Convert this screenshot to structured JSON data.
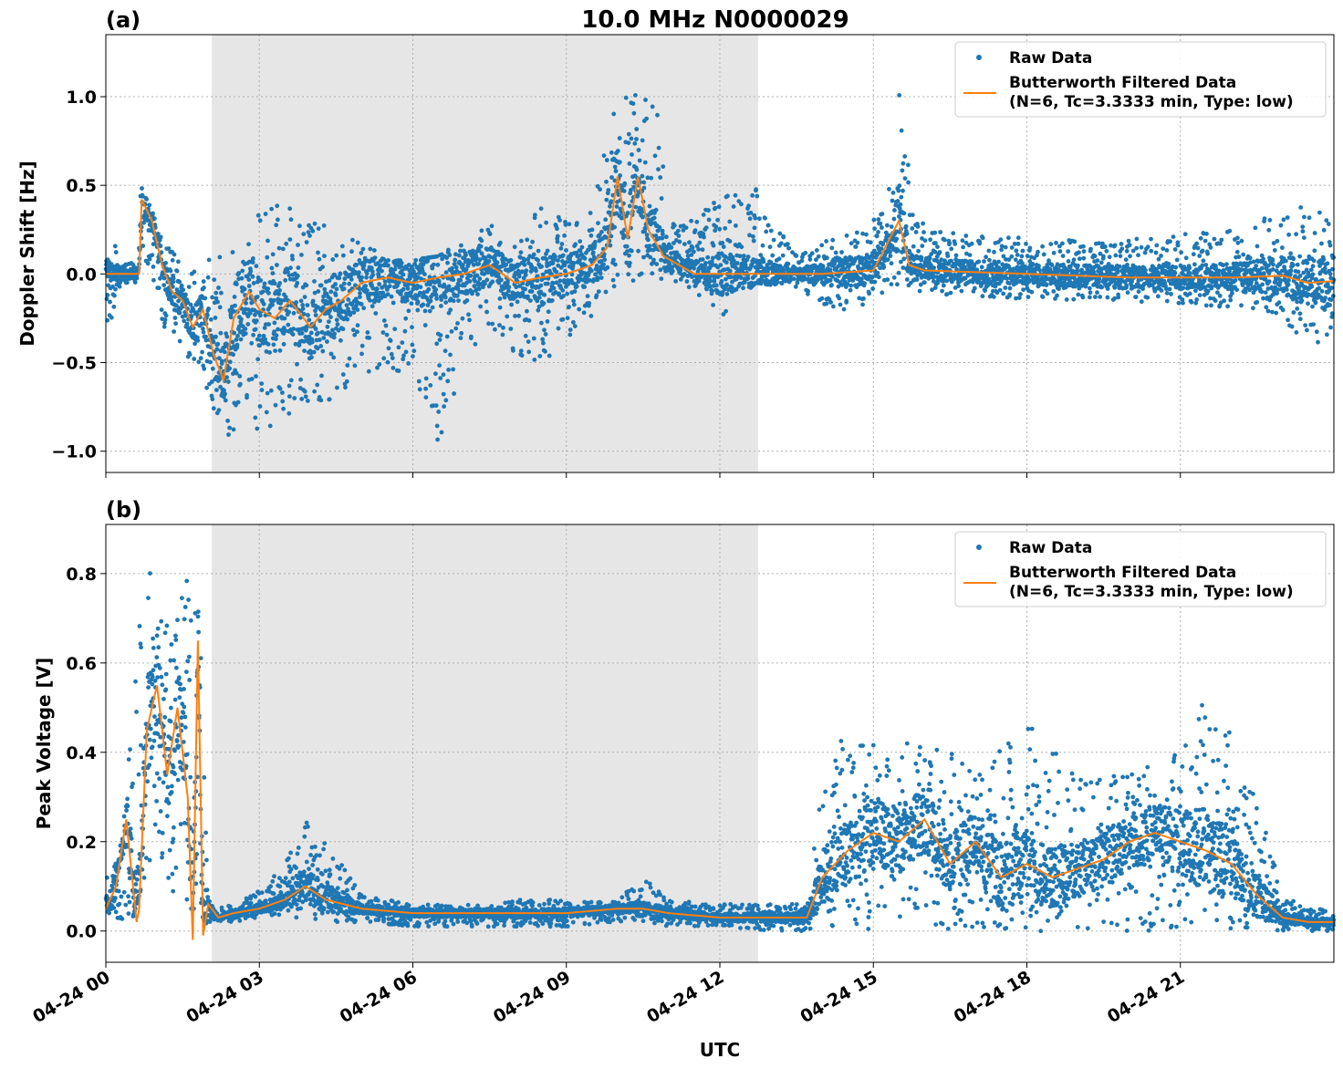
{
  "figure": {
    "title": "10.0 MHz N0000029",
    "xlabel": "UTC"
  },
  "x_tick_labels": [
    "04-24 00",
    "04-24 03",
    "04-24 06",
    "04-24 09",
    "04-24 12",
    "04-24 15",
    "04-24 18",
    "04-24 21"
  ],
  "shaded_interval_hours": [
    2.07,
    12.75
  ],
  "legend": {
    "raw": "Raw Data",
    "filtered_line1": "Butterworth Filtered Data",
    "filtered_line2": "(N=6, Tc=3.3333 min, Type: low)"
  },
  "colors": {
    "raw": "#1f77b4",
    "filtered": "#ff7f0e",
    "shade": "#e6e6e6"
  },
  "chart_data": [
    {
      "type": "scatter",
      "panel_label": "(a)",
      "ylabel": "Doppler Shift [Hz]",
      "xlim_hours": [
        0,
        24
      ],
      "ylim": [
        -1.12,
        1.35
      ],
      "yticks": [
        -1.0,
        -0.5,
        0.0,
        0.5,
        1.0
      ],
      "ytick_labels": [
        "−1.0",
        "−0.5",
        "0.0",
        "0.5",
        "1.0"
      ],
      "grid": true,
      "legend_position": "top-right",
      "series": [
        {
          "name": "Raw Data",
          "kind": "points",
          "x_unit": "hours UTC",
          "envelope_x": [
            0,
            0.3,
            0.6,
            0.7,
            0.9,
            1.2,
            1.5,
            1.8,
            2.0,
            2.3,
            2.6,
            3.0,
            3.5,
            4.0,
            4.5,
            5.0,
            5.5,
            6.0,
            6.5,
            7.0,
            7.5,
            8.0,
            8.5,
            9.0,
            9.5,
            9.9,
            10.2,
            10.5,
            10.8,
            11.0,
            11.5,
            12.0,
            12.7,
            13.5,
            14.5,
            15.0,
            15.4,
            15.5,
            15.8,
            16.5,
            18,
            20,
            22,
            23,
            23.6,
            24
          ],
          "envelope_low": [
            -0.35,
            -0.1,
            -0.05,
            0.15,
            -0.1,
            -0.35,
            -0.45,
            -0.55,
            -0.7,
            -0.95,
            -0.95,
            -0.9,
            -0.8,
            -0.75,
            -0.7,
            -0.6,
            -0.55,
            -0.6,
            -0.95,
            -0.55,
            -0.3,
            -0.45,
            -0.5,
            -0.4,
            -0.25,
            -0.1,
            -0.05,
            -0.05,
            -0.05,
            -0.05,
            -0.1,
            -0.25,
            -0.05,
            -0.08,
            -0.25,
            -0.15,
            -0.1,
            -0.1,
            -0.1,
            -0.12,
            -0.15,
            -0.15,
            -0.2,
            -0.25,
            -0.45,
            -0.5
          ],
          "envelope_high": [
            0.25,
            0.1,
            0.08,
            0.56,
            0.35,
            0.2,
            0.1,
            0.05,
            0.1,
            0.1,
            0.2,
            0.35,
            0.4,
            0.3,
            0.25,
            0.2,
            0.1,
            0.08,
            0.1,
            0.2,
            0.3,
            0.2,
            0.4,
            0.3,
            0.35,
            0.9,
            1.2,
            1.05,
            0.9,
            0.3,
            0.3,
            0.45,
            0.48,
            0.1,
            0.25,
            0.3,
            0.6,
            1.22,
            0.3,
            0.25,
            0.2,
            0.2,
            0.25,
            0.35,
            0.4,
            0.3
          ]
        },
        {
          "name": "Butterworth Filtered Data\n(N=6, Tc=3.3333 min, Type: low)",
          "kind": "line",
          "x": [
            0,
            0.5,
            0.65,
            0.7,
            0.9,
            1.1,
            1.3,
            1.5,
            1.7,
            1.9,
            2.1,
            2.3,
            2.5,
            2.8,
            3.0,
            3.3,
            3.6,
            4.0,
            4.3,
            4.6,
            5.0,
            5.5,
            6.0,
            6.5,
            7.0,
            7.5,
            8.0,
            8.5,
            9.0,
            9.5,
            9.8,
            10.0,
            10.2,
            10.4,
            10.6,
            10.9,
            11.5,
            12.0,
            13.0,
            14.0,
            15.0,
            15.5,
            15.7,
            16.0,
            18.0,
            20.0,
            22.0,
            23.0,
            23.5,
            24.0
          ],
          "y": [
            0.0,
            0.0,
            0.0,
            0.42,
            0.3,
            0.05,
            -0.1,
            -0.15,
            -0.3,
            -0.2,
            -0.45,
            -0.6,
            -0.25,
            -0.1,
            -0.2,
            -0.25,
            -0.15,
            -0.3,
            -0.2,
            -0.15,
            -0.05,
            -0.02,
            -0.05,
            -0.02,
            0.0,
            0.05,
            -0.05,
            -0.02,
            0.0,
            0.05,
            0.15,
            0.55,
            0.2,
            0.55,
            0.25,
            0.1,
            0.0,
            0.0,
            0.0,
            0.0,
            0.02,
            0.3,
            0.05,
            0.02,
            0.0,
            -0.02,
            -0.02,
            -0.01,
            -0.05,
            -0.04
          ]
        }
      ]
    },
    {
      "type": "scatter",
      "panel_label": "(b)",
      "ylabel": "Peak Voltage [V]",
      "xlim_hours": [
        0,
        24
      ],
      "ylim": [
        -0.07,
        0.91
      ],
      "yticks": [
        0.0,
        0.2,
        0.4,
        0.6,
        0.8
      ],
      "ytick_labels": [
        "0.0",
        "0.2",
        "0.4",
        "0.6",
        "0.8"
      ],
      "grid": true,
      "legend_position": "top-right",
      "series": [
        {
          "name": "Raw Data",
          "kind": "points",
          "x_unit": "hours UTC",
          "envelope_x": [
            0,
            0.3,
            0.5,
            0.7,
            1.0,
            1.3,
            1.6,
            1.8,
            2.0,
            2.1,
            2.5,
            3.0,
            3.5,
            3.9,
            4.5,
            5.0,
            6.0,
            7.0,
            8.0,
            9.0,
            10.0,
            10.5,
            11.0,
            12.0,
            13.0,
            13.7,
            14.0,
            14.5,
            15.0,
            16.0,
            17.0,
            18.0,
            19.0,
            20.0,
            21.0,
            21.5,
            22.0,
            22.5,
            23.0,
            23.5,
            24.0
          ],
          "envelope_low": [
            0.01,
            0.02,
            0.02,
            0.1,
            0.1,
            0.05,
            0.05,
            0.05,
            0.01,
            0.02,
            0.02,
            0.03,
            0.03,
            0.03,
            0.02,
            0.02,
            0.01,
            0.01,
            0.01,
            0.01,
            0.02,
            0.02,
            0.01,
            0.01,
            0.0,
            0.0,
            0.01,
            0.0,
            0.0,
            0.0,
            0.0,
            0.0,
            0.0,
            0.0,
            0.0,
            0.0,
            0.0,
            0.0,
            0.0,
            0.0,
            0.0
          ],
          "envelope_high": [
            0.15,
            0.2,
            0.48,
            0.84,
            0.78,
            0.65,
            0.87,
            0.84,
            0.08,
            0.05,
            0.06,
            0.09,
            0.15,
            0.25,
            0.17,
            0.08,
            0.06,
            0.06,
            0.07,
            0.07,
            0.07,
            0.12,
            0.07,
            0.06,
            0.06,
            0.06,
            0.35,
            0.47,
            0.42,
            0.42,
            0.38,
            0.47,
            0.35,
            0.35,
            0.4,
            0.54,
            0.44,
            0.3,
            0.08,
            0.06,
            0.04
          ]
        },
        {
          "name": "Butterworth Filtered Data\n(N=6, Tc=3.3333 min, Type: low)",
          "kind": "line",
          "x": [
            0,
            0.2,
            0.4,
            0.6,
            0.65,
            0.8,
            1.0,
            1.2,
            1.4,
            1.6,
            1.7,
            1.8,
            1.9,
            2.0,
            2.2,
            2.5,
            3.0,
            3.5,
            3.9,
            4.3,
            5.0,
            6.0,
            7.0,
            8.0,
            9.0,
            10.0,
            10.5,
            11.0,
            12.0,
            13.0,
            13.7,
            14.0,
            14.5,
            15.0,
            15.5,
            16.0,
            16.5,
            17.0,
            17.5,
            18.0,
            18.5,
            19.0,
            19.5,
            20.0,
            20.5,
            21.0,
            21.5,
            22.0,
            22.5,
            23.0,
            23.5,
            24.0
          ],
          "y": [
            0.05,
            0.1,
            0.25,
            0.02,
            0.05,
            0.45,
            0.55,
            0.35,
            0.5,
            0.3,
            -0.02,
            0.65,
            -0.01,
            0.06,
            0.03,
            0.04,
            0.05,
            0.07,
            0.1,
            0.07,
            0.05,
            0.04,
            0.04,
            0.04,
            0.04,
            0.05,
            0.05,
            0.04,
            0.03,
            0.03,
            0.03,
            0.12,
            0.18,
            0.22,
            0.2,
            0.25,
            0.15,
            0.2,
            0.12,
            0.15,
            0.12,
            0.14,
            0.16,
            0.2,
            0.22,
            0.2,
            0.18,
            0.15,
            0.08,
            0.03,
            0.02,
            0.02
          ]
        }
      ]
    }
  ]
}
